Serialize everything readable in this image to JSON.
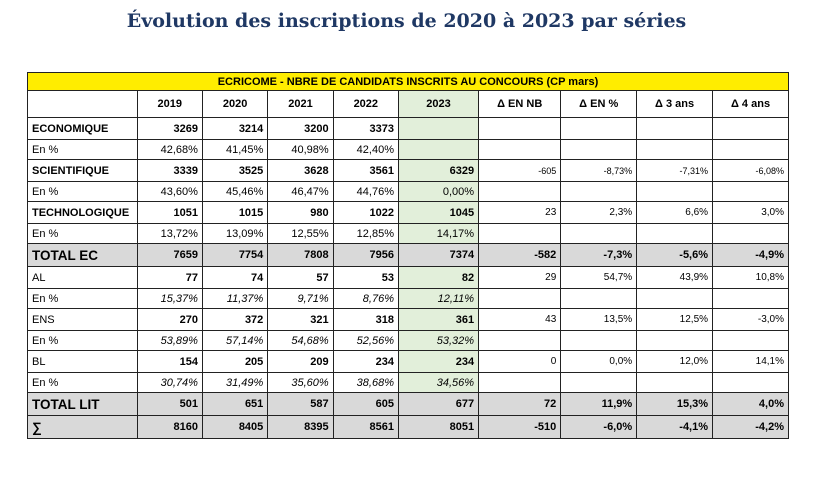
{
  "title": "Évolution des inscriptions de 2020 à 2023 par séries",
  "table": {
    "banner": "ECRICOME - NBRE DE CANDIDATS INSCRITS AU CONCOURS (CP mars)",
    "headers": [
      "",
      "2019",
      "2020",
      "2021",
      "2022",
      "2023",
      "Δ EN NB",
      "Δ EN %",
      "Δ 3 ans",
      "Δ 4 ans"
    ],
    "rows": [
      {
        "kind": "main",
        "group": "ec",
        "cells": [
          "ECONOMIQUE",
          "3269",
          "3214",
          "3200",
          "3373",
          "",
          "",
          "",
          "",
          ""
        ]
      },
      {
        "kind": "pct",
        "group": "ec",
        "cells": [
          "En %",
          "42,68%",
          "41,45%",
          "40,98%",
          "42,40%",
          "",
          "",
          "",
          "",
          ""
        ]
      },
      {
        "kind": "main",
        "group": "ec sci",
        "cells": [
          "SCIENTIFIQUE",
          "3339",
          "3525",
          "3628",
          "3561",
          "6329",
          "-605",
          "-8,73%",
          "-7,31%",
          "-6,08%"
        ]
      },
      {
        "kind": "pct",
        "group": "ec",
        "cells": [
          "En %",
          "43,60%",
          "45,46%",
          "46,47%",
          "44,76%",
          "0,00%",
          "",
          "",
          "",
          ""
        ]
      },
      {
        "kind": "main",
        "group": "ec",
        "cells": [
          "TECHNOLOGIQUE",
          "1051",
          "1015",
          "980",
          "1022",
          "1045",
          "23",
          "2,3%",
          "6,6%",
          "3,0%"
        ]
      },
      {
        "kind": "pct",
        "group": "ec",
        "cells": [
          "En %",
          "13,72%",
          "13,09%",
          "12,55%",
          "12,85%",
          "14,17%",
          "",
          "",
          "",
          ""
        ]
      },
      {
        "kind": "total",
        "group": "",
        "cells": [
          "TOTAL EC",
          "7659",
          "7754",
          "7808",
          "7956",
          "7374",
          "-582",
          "-7,3%",
          "-5,6%",
          "-4,9%"
        ]
      },
      {
        "kind": "main",
        "group": "lit",
        "cells": [
          "AL",
          "77",
          "74",
          "57",
          "53",
          "82",
          "29",
          "54,7%",
          "43,9%",
          "10,8%"
        ]
      },
      {
        "kind": "pct",
        "group": "lit",
        "cells": [
          "En %",
          "15,37%",
          "11,37%",
          "9,71%",
          "8,76%",
          "12,11%",
          "",
          "",
          "",
          ""
        ]
      },
      {
        "kind": "main",
        "group": "lit",
        "cells": [
          "ENS",
          "270",
          "372",
          "321",
          "318",
          "361",
          "43",
          "13,5%",
          "12,5%",
          "-3,0%"
        ]
      },
      {
        "kind": "pct",
        "group": "lit",
        "cells": [
          "En %",
          "53,89%",
          "57,14%",
          "54,68%",
          "52,56%",
          "53,32%",
          "",
          "",
          "",
          ""
        ]
      },
      {
        "kind": "main",
        "group": "lit",
        "cells": [
          "BL",
          "154",
          "205",
          "209",
          "234",
          "234",
          "0",
          "0,0%",
          "12,0%",
          "14,1%"
        ]
      },
      {
        "kind": "pct",
        "group": "lit",
        "cells": [
          "En %",
          "30,74%",
          "31,49%",
          "35,60%",
          "38,68%",
          "34,56%",
          "",
          "",
          "",
          ""
        ]
      },
      {
        "kind": "total",
        "group": "",
        "cells": [
          "TOTAL LIT",
          "501",
          "651",
          "587",
          "605",
          "677",
          "72",
          "11,9%",
          "15,3%",
          "4,0%"
        ]
      },
      {
        "kind": "total",
        "group": "",
        "cells": [
          "∑",
          "8160",
          "8405",
          "8395",
          "8561",
          "8051",
          "-510",
          "-6,0%",
          "-4,1%",
          "-4,2%"
        ]
      }
    ]
  }
}
